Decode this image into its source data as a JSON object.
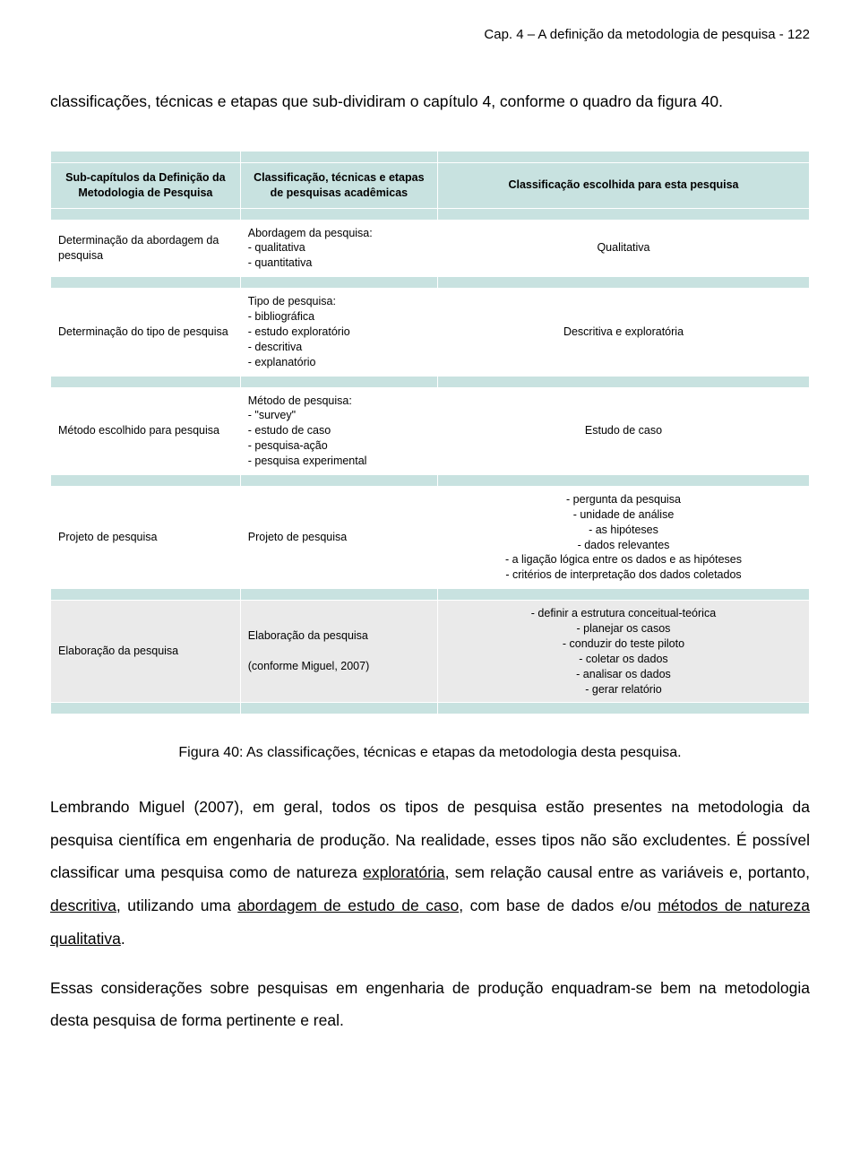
{
  "header": "Cap. 4 – A definição da metodologia de pesquisa - 122",
  "intro": "classificações, técnicas e etapas que sub-dividiram o capítulo 4, conforme o quadro da figura 40.",
  "table": {
    "colors": {
      "header_bg": "#c8e2e0",
      "band_bg": "#c8e2e0",
      "white_bg": "#ffffff",
      "gray_bg": "#eaeaea",
      "border": "#ffffff",
      "text": "#000000"
    },
    "col_widths_pct": [
      25,
      26,
      49
    ],
    "font_size_pt": 9.5,
    "header": {
      "c1": "Sub-capítulos da Definição da Metodologia de Pesquisa",
      "c2": "Classificação, técnicas e etapas de pesquisas acadêmicas",
      "c3": "Classificação escolhida para esta pesquisa"
    },
    "rows": [
      {
        "c1": "Determinação da abordagem da pesquisa",
        "c2": "Abordagem da pesquisa:\n- qualitativa\n- quantitativa",
        "c3": "Qualitativa"
      },
      {
        "c1": "Determinação do tipo de pesquisa",
        "c2": "Tipo de pesquisa:\n- bibliográfica\n- estudo exploratório\n- descritiva\n- explanatório",
        "c3": "Descritiva e exploratória"
      },
      {
        "c1": "Método escolhido para pesquisa",
        "c2": "Método de pesquisa:\n- \"survey\"\n- estudo de caso\n- pesquisa-ação\n- pesquisa experimental",
        "c3": "Estudo de caso"
      },
      {
        "c1": "Projeto de pesquisa",
        "c2": "Projeto de pesquisa",
        "c3": "- pergunta da pesquisa\n- unidade de análise\n- as hipóteses\n- dados relevantes\n- a ligação lógica entre os dados e as hipóteses\n- critérios de interpretação dos dados coletados"
      },
      {
        "c1": "Elaboração da pesquisa",
        "c2": "Elaboração da pesquisa\n\n(conforme Miguel, 2007)",
        "c3": "- definir a estrutura conceitual-teórica\n- planejar os casos\n- conduzir do teste piloto\n- coletar os dados\n- analisar os dados\n- gerar relatório"
      }
    ]
  },
  "caption": "Figura 40: As classificações, técnicas e etapas da metodologia desta pesquisa.",
  "para1": {
    "pre": "Lembrando Miguel (2007), em geral, todos os tipos de pesquisa estão presentes na metodologia da pesquisa científica em engenharia de produção. Na realidade, esses tipos não são excludentes. É possível classificar uma pesquisa como de natureza ",
    "u1": "exploratória",
    "mid1": ", sem relação causal entre as variáveis e, portanto, ",
    "u2": "descritiva",
    "mid2": ", utilizando uma ",
    "u3": "abordagem de estudo de caso",
    "mid3": ", com base de dados e/ou ",
    "u4": "métodos de natureza qualitativa",
    "post": "."
  },
  "para2": "Essas considerações sobre pesquisas em engenharia de produção enquadram-se bem na metodologia desta pesquisa de forma pertinente e real."
}
